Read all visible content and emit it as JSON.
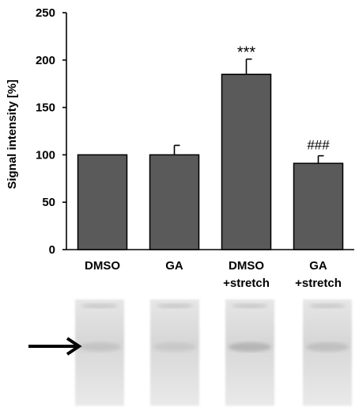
{
  "chart_data": {
    "type": "bar",
    "ylabel": "Signal intensity [%]",
    "ylim": [
      0,
      250
    ],
    "yticks": [
      0,
      50,
      100,
      150,
      200,
      250
    ],
    "categories": [
      {
        "line1": "DMSO",
        "line2": ""
      },
      {
        "line1": "GA",
        "line2": ""
      },
      {
        "line1": "DMSO",
        "line2": "+stretch"
      },
      {
        "line1": "GA",
        "line2": "+stretch"
      }
    ],
    "values": [
      100,
      100,
      185,
      91
    ],
    "errors": [
      0,
      10,
      16,
      8
    ],
    "annotations": [
      "",
      "",
      "***",
      "###"
    ],
    "bar_color": "#5a5a5a",
    "grid": false
  },
  "blot": {
    "description_icon": "right-arrow-icon",
    "lane_count": 4
  }
}
